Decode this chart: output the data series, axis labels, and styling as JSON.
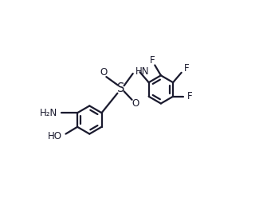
{
  "bg_color": "#ffffff",
  "line_color": "#1a1a2e",
  "line_width": 1.6,
  "font_size": 8.5,
  "figsize": [
    3.3,
    2.59
  ],
  "dpi": 100,
  "ring_r": 0.3,
  "inner_r": 0.22,
  "xlim": [
    0.0,
    5.5
  ],
  "ylim": [
    0.0,
    4.4
  ]
}
